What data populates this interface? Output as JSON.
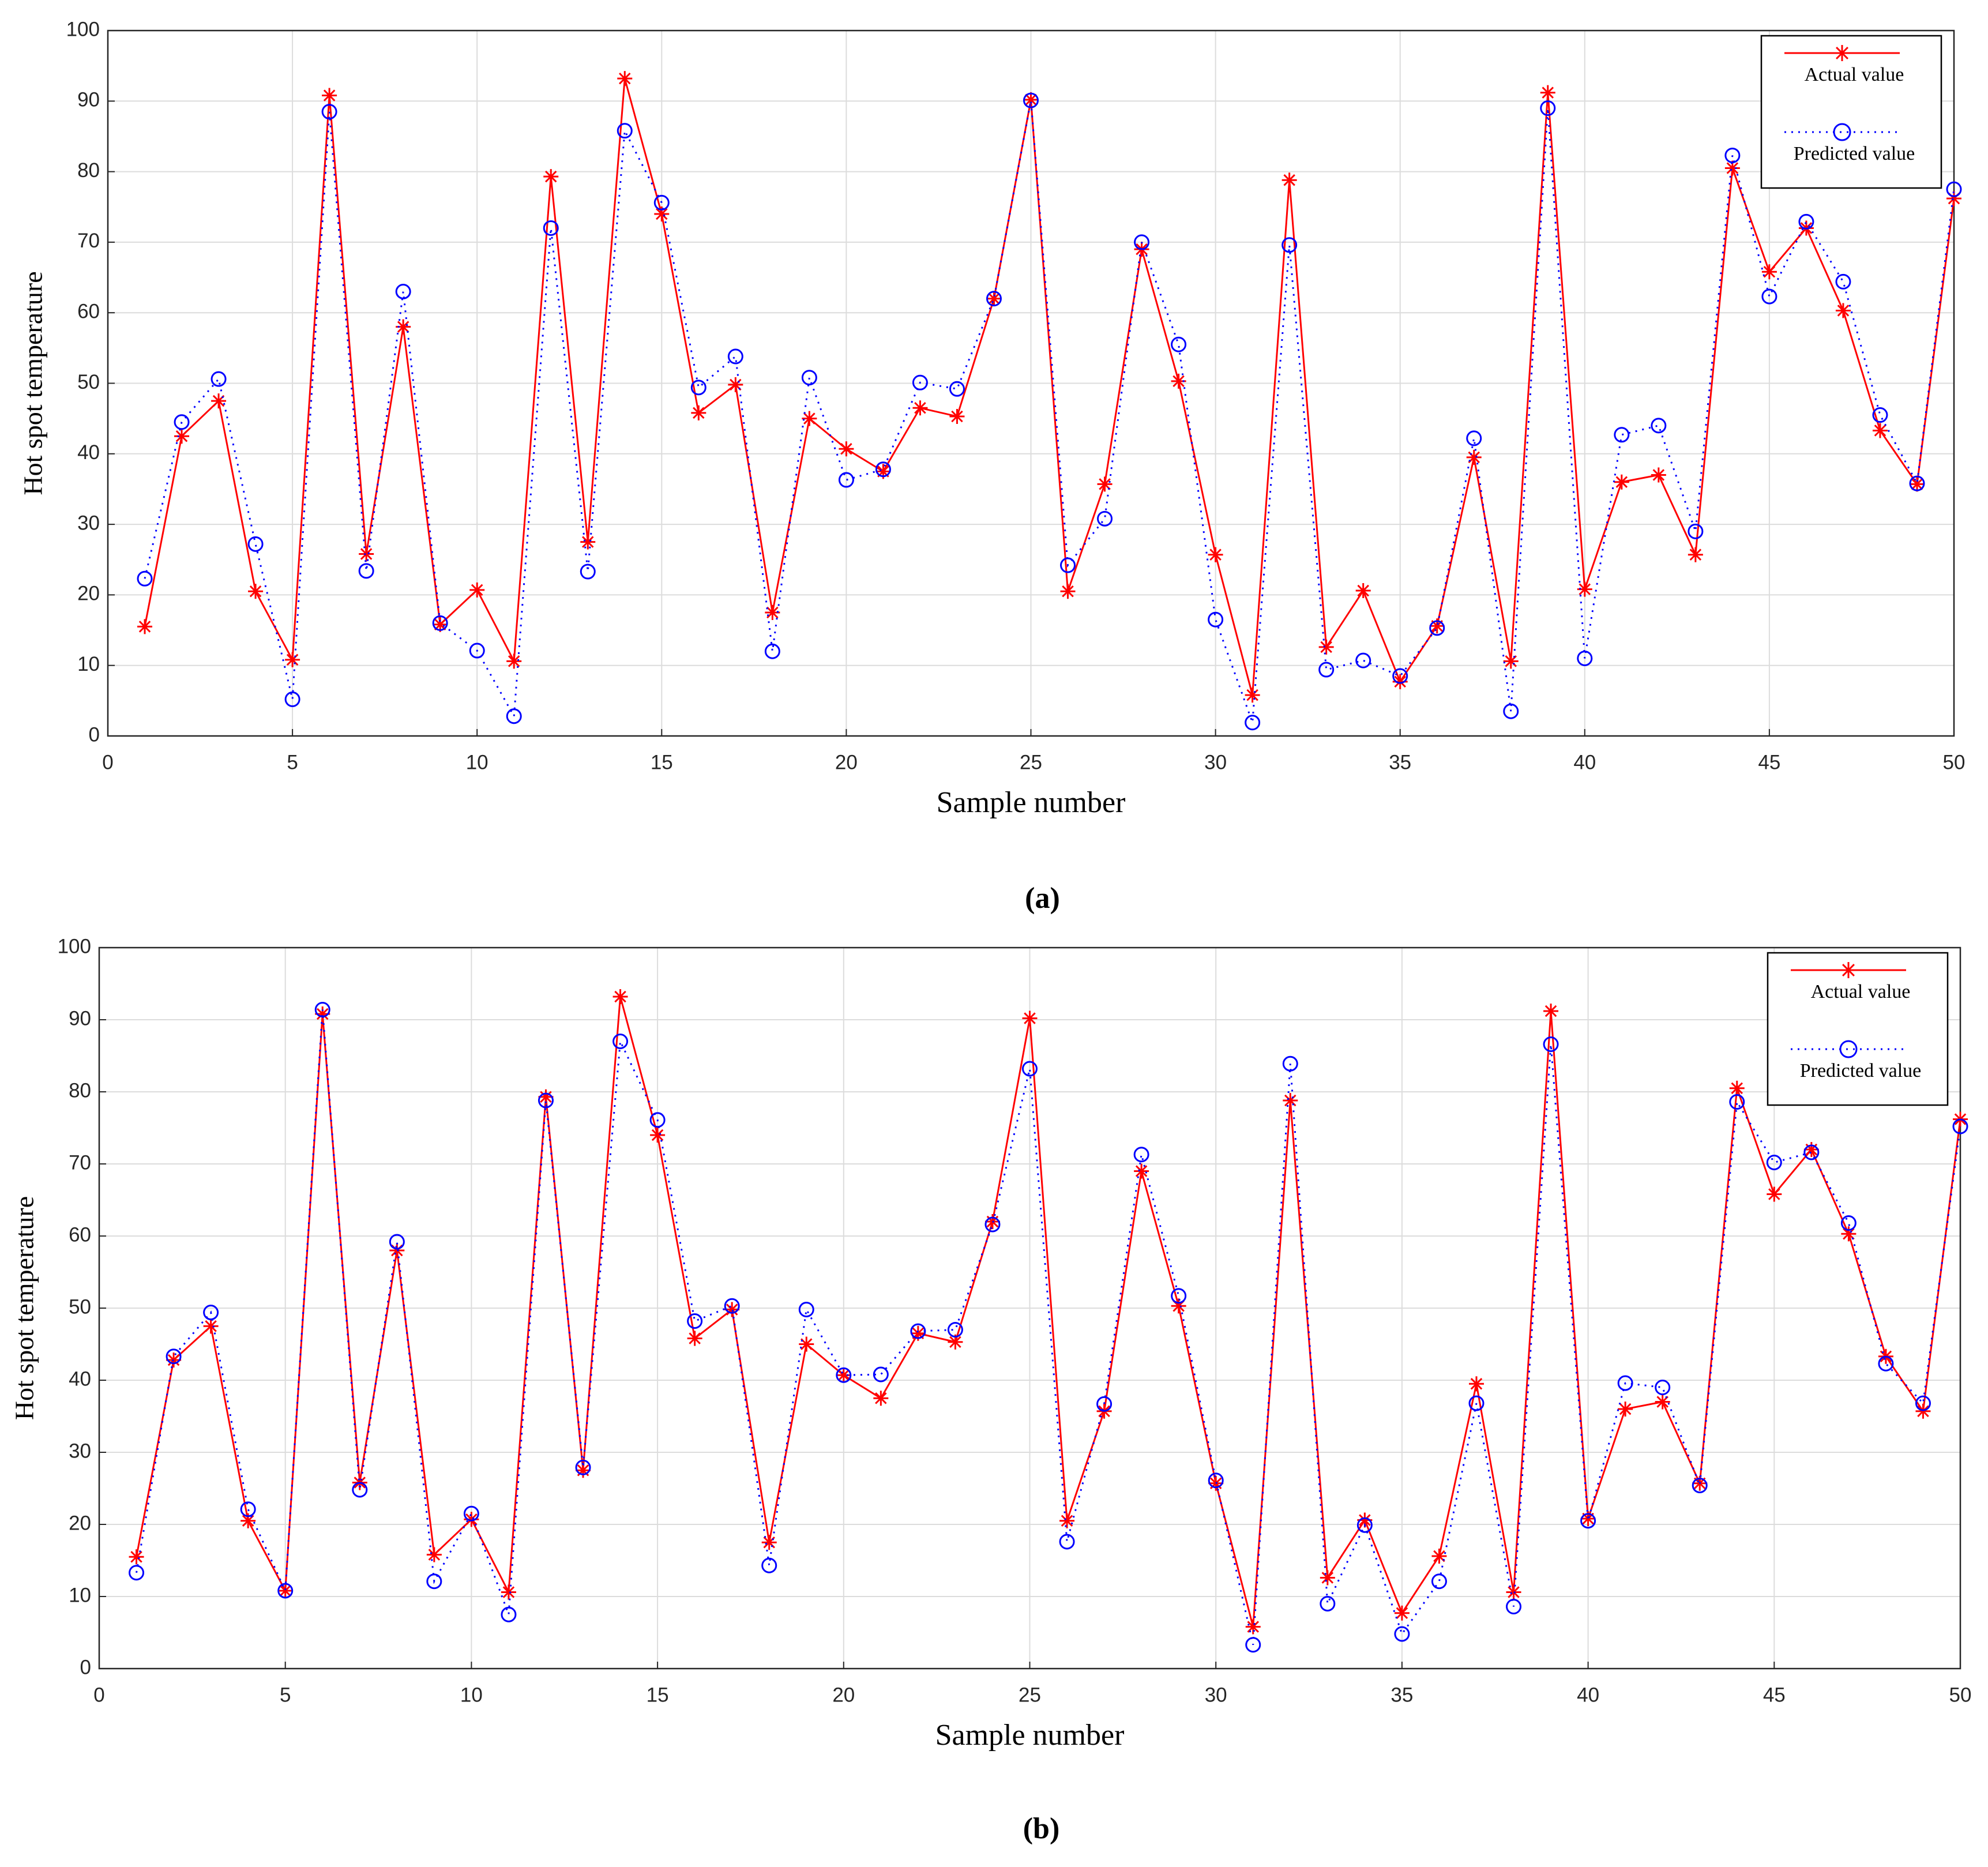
{
  "chart_data": [
    {
      "type": "line",
      "caption": "(a)",
      "xlabel": "Sample number",
      "ylabel": "Hot spot temperature",
      "x": [
        1,
        2,
        3,
        4,
        5,
        6,
        7,
        8,
        9,
        10,
        11,
        12,
        13,
        14,
        15,
        16,
        17,
        18,
        19,
        20,
        21,
        22,
        23,
        24,
        25,
        26,
        27,
        28,
        29,
        30,
        31,
        32,
        33,
        34,
        35,
        36,
        37,
        38,
        39,
        40,
        41,
        42,
        43,
        44,
        45,
        46,
        47,
        48,
        49,
        50
      ],
      "series": [
        {
          "name": "Actual value",
          "color": "#ff0000",
          "line_style": "solid",
          "marker": "star",
          "values": [
            15.5,
            42.5,
            47.5,
            20.5,
            10.8,
            90.8,
            25.8,
            58,
            15.8,
            20.7,
            10.6,
            79.3,
            27.5,
            93.2,
            74,
            45.8,
            49.8,
            17.5,
            45,
            40.7,
            37.5,
            46.5,
            45.3,
            62,
            90.2,
            20.5,
            35.7,
            69,
            50.3,
            25.7,
            5.8,
            78.8,
            12.6,
            20.6,
            7.7,
            15.6,
            39.5,
            10.6,
            91.2,
            20.8,
            36,
            37,
            25.7,
            80.5,
            65.8,
            72,
            60.3,
            43.3,
            35.7,
            76.2
          ]
        },
        {
          "name": "Predicted value",
          "color": "#0000ff",
          "line_style": "dotted",
          "marker": "circle",
          "values": [
            22.3,
            44.5,
            50.6,
            27.2,
            5.2,
            88.5,
            23.4,
            63,
            16,
            12.1,
            2.8,
            72,
            23.3,
            85.8,
            75.6,
            49.4,
            53.8,
            12,
            50.8,
            36.3,
            37.8,
            50.1,
            49.2,
            62,
            90.1,
            24.2,
            30.8,
            70,
            55.5,
            16.5,
            1.9,
            69.6,
            9.4,
            10.7,
            8.5,
            15.3,
            42.2,
            3.5,
            89,
            11,
            42.7,
            44,
            29,
            82.3,
            62.3,
            72.9,
            64.4,
            45.5,
            35.8,
            77.5
          ]
        }
      ],
      "xlim": [
        0,
        50
      ],
      "xticks": [
        0,
        5,
        10,
        15,
        20,
        25,
        30,
        35,
        40,
        45,
        50
      ],
      "ylim": [
        0,
        100
      ],
      "yticks": [
        0,
        10,
        20,
        30,
        40,
        50,
        60,
        70,
        80,
        90,
        100
      ],
      "grid": true,
      "legend": "upper right"
    },
    {
      "type": "line",
      "caption": "(b)",
      "xlabel": "Sample number",
      "ylabel": "Hot spot temperature",
      "x": [
        1,
        2,
        3,
        4,
        5,
        6,
        7,
        8,
        9,
        10,
        11,
        12,
        13,
        14,
        15,
        16,
        17,
        18,
        19,
        20,
        21,
        22,
        23,
        24,
        25,
        26,
        27,
        28,
        29,
        30,
        31,
        32,
        33,
        34,
        35,
        36,
        37,
        38,
        39,
        40,
        41,
        42,
        43,
        44,
        45,
        46,
        47,
        48,
        49,
        50
      ],
      "series": [
        {
          "name": "Actual value",
          "color": "#ff0000",
          "line_style": "solid",
          "marker": "star",
          "values": [
            15.5,
            42.8,
            47.5,
            20.5,
            10.8,
            90.8,
            25.8,
            58,
            15.8,
            20.7,
            10.6,
            79.3,
            27.5,
            93.2,
            74,
            45.8,
            49.8,
            17.5,
            45,
            40.7,
            37.5,
            46.5,
            45.3,
            62,
            90.2,
            20.5,
            35.7,
            69,
            50.3,
            25.7,
            5.8,
            78.8,
            12.6,
            20.6,
            7.7,
            15.6,
            39.5,
            10.6,
            91.2,
            20.8,
            36,
            37,
            25.7,
            80.5,
            65.8,
            72,
            60.3,
            43.3,
            35.7,
            76.2
          ]
        },
        {
          "name": "Predicted value",
          "color": "#0000ff",
          "line_style": "dotted",
          "marker": "circle",
          "values": [
            13.3,
            43.3,
            49.4,
            22.1,
            10.8,
            91.4,
            24.8,
            59.2,
            12.1,
            21.5,
            7.5,
            78.8,
            27.9,
            87,
            76.1,
            48.2,
            50.3,
            14.3,
            49.8,
            40.7,
            40.8,
            46.8,
            47,
            61.6,
            83.2,
            17.6,
            36.7,
            71.3,
            51.7,
            26.1,
            3.3,
            83.9,
            9,
            19.9,
            4.8,
            12.1,
            36.8,
            8.6,
            86.6,
            20.5,
            39.6,
            39,
            25.4,
            78.6,
            70.2,
            71.6,
            61.8,
            42.3,
            36.8,
            75.2
          ]
        }
      ],
      "xlim": [
        0,
        50
      ],
      "xticks": [
        0,
        5,
        10,
        15,
        20,
        25,
        30,
        35,
        40,
        45,
        50
      ],
      "ylim": [
        0,
        100
      ],
      "yticks": [
        0,
        10,
        20,
        30,
        40,
        50,
        60,
        70,
        80,
        90,
        100
      ],
      "grid": true,
      "legend": "upper right"
    }
  ]
}
